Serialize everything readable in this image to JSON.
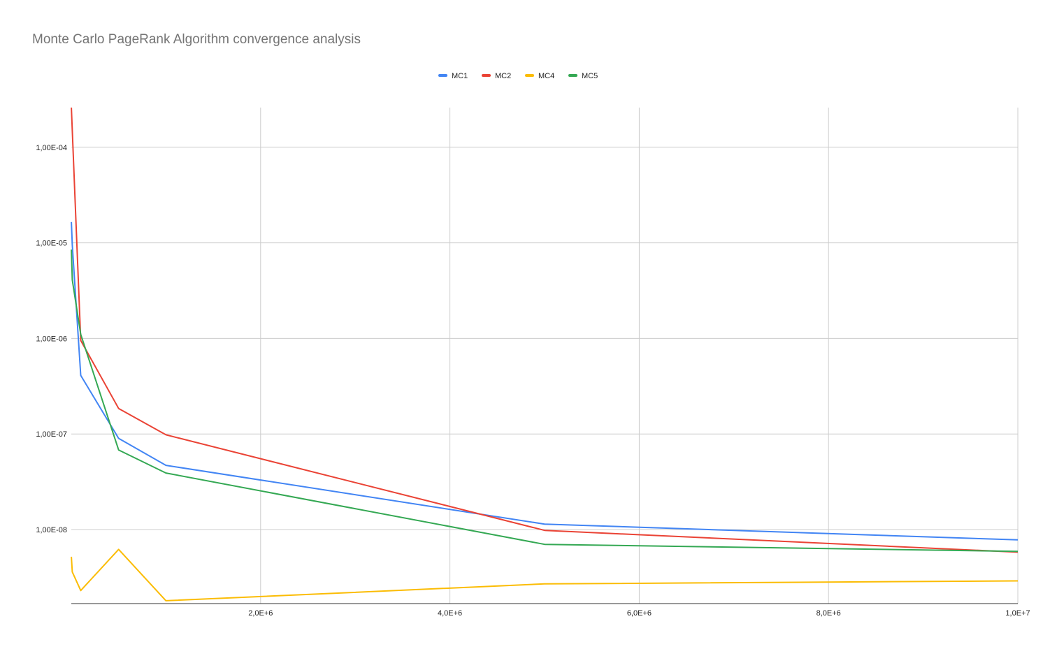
{
  "chart_data": {
    "type": "line",
    "title": "Monte Carlo PageRank Algorithm convergence analysis",
    "xlabel": "",
    "ylabel": "",
    "x_scale": "linear",
    "y_scale": "log",
    "xlim": [
      0,
      10000000
    ],
    "ylim": [
      2e-09,
      0.00026
    ],
    "x_ticks": [
      {
        "value": 2000000,
        "label": "2,0E+6"
      },
      {
        "value": 4000000,
        "label": "4,0E+6"
      },
      {
        "value": 6000000,
        "label": "6,0E+6"
      },
      {
        "value": 8000000,
        "label": "8,0E+6"
      },
      {
        "value": 10000000,
        "label": "1,0E+7"
      }
    ],
    "y_ticks": [
      {
        "value": 1e-08,
        "label": "1,00E-08"
      },
      {
        "value": 1e-07,
        "label": "1,00E-07"
      },
      {
        "value": 1e-06,
        "label": "1,00E-06"
      },
      {
        "value": 1e-05,
        "label": "1,00E-05"
      },
      {
        "value": 0.0001,
        "label": "1,00E-04"
      }
    ],
    "grid": true,
    "legend": "top-center",
    "series": [
      {
        "name": "MC1",
        "color": "#4285f4",
        "x": [
          1000,
          10000,
          100000,
          500000,
          1000000,
          5000000,
          10000000
        ],
        "y": [
          1.65e-05,
          9.5e-06,
          4.1e-07,
          9e-08,
          4.7e-08,
          1.14e-08,
          7.8e-09
        ]
      },
      {
        "name": "MC2",
        "color": "#ea4335",
        "x": [
          1000,
          10000,
          100000,
          500000,
          1000000,
          5000000,
          10000000
        ],
        "y": [
          0.00026,
          0.00015,
          9.5e-07,
          1.85e-07,
          9.8e-08,
          9.8e-09,
          5.8e-09
        ]
      },
      {
        "name": "MC4",
        "color": "#fbbc04",
        "x": [
          1000,
          10000,
          100000,
          500000,
          1000000,
          5000000,
          10000000
        ],
        "y": [
          5.2e-09,
          3.6e-09,
          2.3e-09,
          6.2e-09,
          1.8e-09,
          2.7e-09,
          2.9e-09
        ]
      },
      {
        "name": "MC5",
        "color": "#34a853",
        "x": [
          1000,
          10000,
          100000,
          500000,
          1000000,
          5000000,
          10000000
        ],
        "y": [
          8.5e-06,
          4.1e-06,
          1.1e-06,
          6.8e-08,
          3.9e-08,
          7e-09,
          5.9e-09
        ]
      }
    ]
  }
}
